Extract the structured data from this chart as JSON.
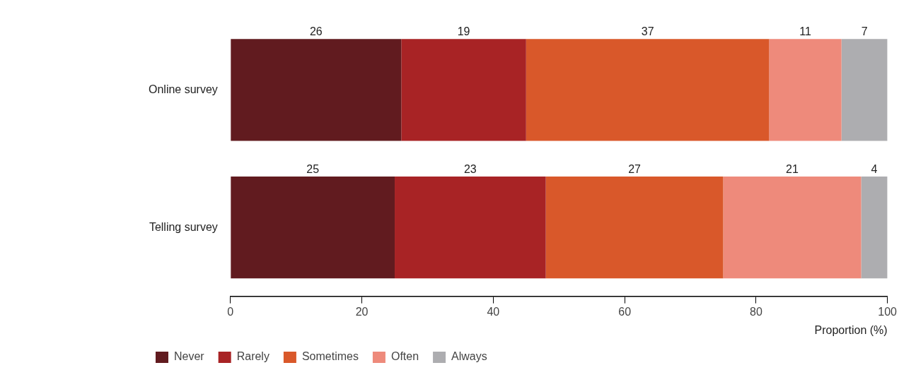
{
  "chart_data": {
    "type": "bar",
    "orientation": "horizontal",
    "stacked": true,
    "categories": [
      "Online survey",
      "Telling survey"
    ],
    "series": [
      {
        "name": "Never",
        "color": "#611b1f",
        "values": [
          26,
          25
        ]
      },
      {
        "name": "Rarely",
        "color": "#a82325",
        "values": [
          19,
          23
        ]
      },
      {
        "name": "Sometimes",
        "color": "#d9582a",
        "values": [
          37,
          27
        ]
      },
      {
        "name": "Often",
        "color": "#ee8a7b",
        "values": [
          11,
          21
        ]
      },
      {
        "name": "Always",
        "color": "#adadb0",
        "values": [
          7,
          4
        ]
      }
    ],
    "xlim": [
      0,
      100
    ],
    "xticks": [
      0,
      20,
      40,
      60,
      80,
      100
    ],
    "xlabel": "Proportion (%)",
    "data_labels": true,
    "grid": false,
    "legend": "bottom left"
  }
}
